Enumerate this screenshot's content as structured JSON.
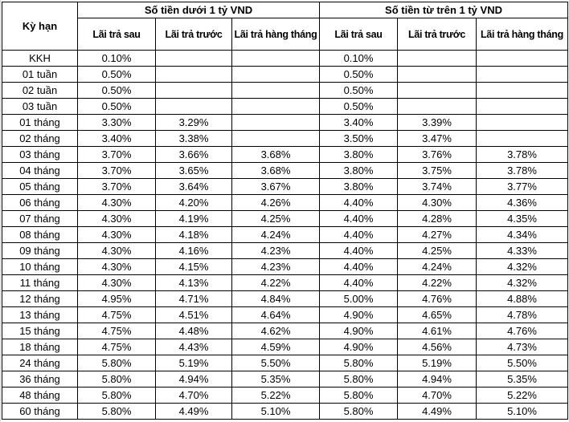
{
  "table": {
    "term_header": "Kỳ hạn",
    "groups": [
      {
        "label": "Số tiền dưới 1 tỷ VND",
        "columns": [
          "Lãi trả sau",
          "Lãi trả trước",
          "Lãi trả hàng tháng"
        ]
      },
      {
        "label": "Số tiền từ trên 1 tỷ VND",
        "columns": [
          "Lãi trả sau",
          "Lãi trả trước",
          "Lãi trả hàng tháng"
        ]
      }
    ],
    "rows": [
      {
        "term": "KKH",
        "below": [
          "0.10%",
          "",
          ""
        ],
        "above": [
          "0.10%",
          "",
          ""
        ]
      },
      {
        "term": "01 tuần",
        "below": [
          "0.50%",
          "",
          ""
        ],
        "above": [
          "0.50%",
          "",
          ""
        ]
      },
      {
        "term": "02 tuần",
        "below": [
          "0.50%",
          "",
          ""
        ],
        "above": [
          "0.50%",
          "",
          ""
        ]
      },
      {
        "term": "03 tuần",
        "below": [
          "0.50%",
          "",
          ""
        ],
        "above": [
          "0.50%",
          "",
          ""
        ]
      },
      {
        "term": "01 tháng",
        "below": [
          "3.30%",
          "3.29%",
          ""
        ],
        "above": [
          "3.40%",
          "3.39%",
          ""
        ]
      },
      {
        "term": "02 tháng",
        "below": [
          "3.40%",
          "3.38%",
          ""
        ],
        "above": [
          "3.50%",
          "3.47%",
          ""
        ]
      },
      {
        "term": "03 tháng",
        "below": [
          "3.70%",
          "3.66%",
          "3.68%"
        ],
        "above": [
          "3.80%",
          "3.76%",
          "3.78%"
        ]
      },
      {
        "term": "04 tháng",
        "below": [
          "3.70%",
          "3.65%",
          "3.68%"
        ],
        "above": [
          "3.80%",
          "3.75%",
          "3.78%"
        ]
      },
      {
        "term": "05 tháng",
        "below": [
          "3.70%",
          "3.64%",
          "3.67%"
        ],
        "above": [
          "3.80%",
          "3.74%",
          "3.77%"
        ]
      },
      {
        "term": "06 tháng",
        "below": [
          "4.30%",
          "4.20%",
          "4.26%"
        ],
        "above": [
          "4.40%",
          "4.30%",
          "4.36%"
        ]
      },
      {
        "term": "07 tháng",
        "below": [
          "4.30%",
          "4.19%",
          "4.25%"
        ],
        "above": [
          "4.40%",
          "4.28%",
          "4.35%"
        ]
      },
      {
        "term": "08 tháng",
        "below": [
          "4.30%",
          "4.18%",
          "4.24%"
        ],
        "above": [
          "4.40%",
          "4.27%",
          "4.34%"
        ]
      },
      {
        "term": "09 tháng",
        "below": [
          "4.30%",
          "4.16%",
          "4.23%"
        ],
        "above": [
          "4.40%",
          "4.25%",
          "4.33%"
        ]
      },
      {
        "term": "10 tháng",
        "below": [
          "4.30%",
          "4.15%",
          "4.23%"
        ],
        "above": [
          "4.40%",
          "4.24%",
          "4.32%"
        ]
      },
      {
        "term": "11 tháng",
        "below": [
          "4.30%",
          "4.13%",
          "4.22%"
        ],
        "above": [
          "4.40%",
          "4.22%",
          "4.32%"
        ]
      },
      {
        "term": "12 tháng",
        "below": [
          "4.95%",
          "4.71%",
          "4.84%"
        ],
        "above": [
          "5.00%",
          "4.76%",
          "4.88%"
        ]
      },
      {
        "term": "13 tháng",
        "below": [
          "4.75%",
          "4.51%",
          "4.64%"
        ],
        "above": [
          "4.90%",
          "4.65%",
          "4.78%"
        ]
      },
      {
        "term": "15 tháng",
        "below": [
          "4.75%",
          "4.48%",
          "4.62%"
        ],
        "above": [
          "4.90%",
          "4.61%",
          "4.76%"
        ]
      },
      {
        "term": "18 tháng",
        "below": [
          "4.75%",
          "4.43%",
          "4.59%"
        ],
        "above": [
          "4.90%",
          "4.56%",
          "4.73%"
        ]
      },
      {
        "term": "24 tháng",
        "below": [
          "5.80%",
          "5.19%",
          "5.50%"
        ],
        "above": [
          "5.80%",
          "5.19%",
          "5.50%"
        ]
      },
      {
        "term": "36 tháng",
        "below": [
          "5.80%",
          "4.94%",
          "5.35%"
        ],
        "above": [
          "5.80%",
          "4.94%",
          "5.35%"
        ]
      },
      {
        "term": "48 tháng",
        "below": [
          "5.80%",
          "4.70%",
          "5.22%"
        ],
        "above": [
          "5.80%",
          "4.70%",
          "5.22%"
        ]
      },
      {
        "term": "60 tháng",
        "below": [
          "5.80%",
          "4.49%",
          "5.10%"
        ],
        "above": [
          "5.80%",
          "4.49%",
          "5.10%"
        ]
      }
    ]
  }
}
